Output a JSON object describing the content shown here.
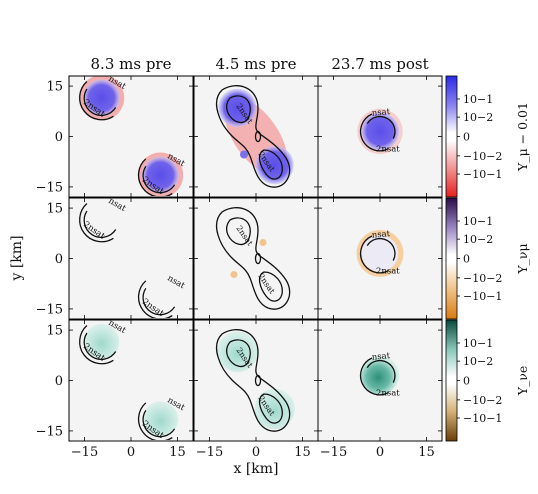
{
  "chart_data": {
    "type": "heatmap",
    "columns": [
      "8.3 ms pre",
      "4.5 ms pre",
      "23.7 ms post"
    ],
    "rows": [
      {
        "quantity": "Y_mu - 0.01",
        "colorbar_label": "Y_μ − 0.01",
        "cmap": "red-white-blue",
        "pos_color": "#3b2ee0",
        "neg_color": "#e83a3a"
      },
      {
        "quantity": "Y_nu_mu",
        "colorbar_label": "Y_νμ",
        "cmap": "orange-white-purple",
        "pos_color": "#4a1a7a",
        "neg_color": "#e0901e"
      },
      {
        "quantity": "Y_nu_e",
        "colorbar_label": "Y_νe",
        "cmap": "brown-white-teal",
        "pos_color": "#1a6e5e",
        "neg_color": "#8b5a1a"
      }
    ],
    "colorbar_ticks": [
      "10^-1",
      "10^-2",
      "0",
      "-10^-2",
      "-10^-1"
    ],
    "colorbar_tick_labels": [
      "10−1",
      "10−2",
      "0",
      "−10−2",
      "−10−1"
    ],
    "xlabel": "x [km]",
    "ylabel": "y [km]",
    "xlim": [
      -20,
      20
    ],
    "ylim": [
      -18,
      18
    ],
    "xticks": [
      -15,
      0,
      15
    ],
    "yticks": [
      15,
      0,
      -15
    ],
    "xtick_labels": [
      "−15",
      "0",
      "15"
    ],
    "ytick_labels": [
      "15",
      "0",
      "−15"
    ],
    "contour_labels": [
      "n_sat",
      "2n_sat"
    ],
    "contour_label_text": {
      "nsat": "nsat",
      "two_nsat": "2nsat"
    },
    "panels": [
      {
        "col": 0,
        "stars": [
          {
            "cx": -9.5,
            "cy": 11.5,
            "r": 6.0,
            "rot": 0
          },
          {
            "cx": 9.5,
            "cy": -11.5,
            "r": 6.0,
            "rot": 0
          }
        ]
      },
      {
        "col": 1,
        "stars": [
          {
            "cx": 0,
            "cy": 0,
            "r": 6.0,
            "bridge": true
          }
        ]
      },
      {
        "col": 2,
        "stars": [
          {
            "cx": 0,
            "cy": 1.5,
            "r": 6.2
          }
        ]
      }
    ]
  }
}
